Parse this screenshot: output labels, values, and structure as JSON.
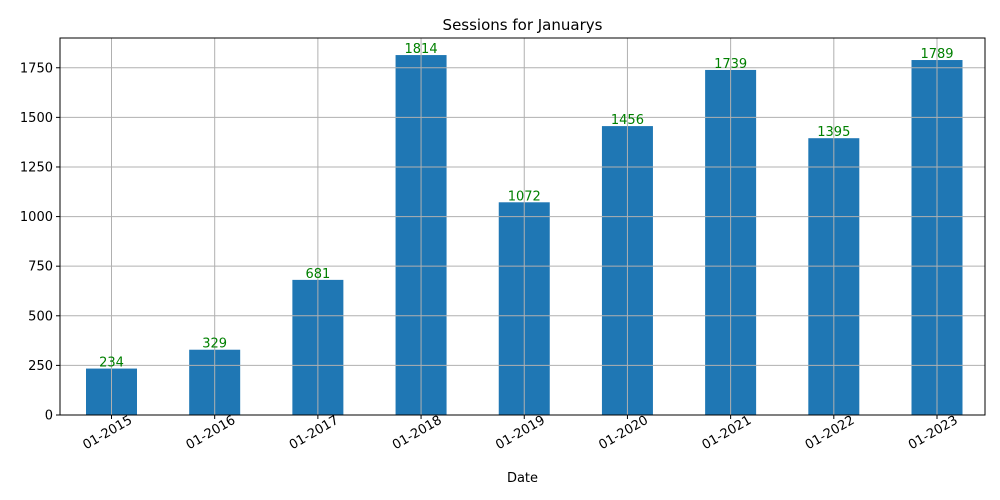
{
  "chart_data": {
    "type": "bar",
    "title": "Sessions for Januarys",
    "xlabel": "Date",
    "ylabel": "",
    "categories": [
      "01-2015",
      "01-2016",
      "01-2017",
      "01-2018",
      "01-2019",
      "01-2020",
      "01-2021",
      "01-2022",
      "01-2023"
    ],
    "values": [
      234,
      329,
      681,
      1814,
      1072,
      1456,
      1739,
      1395,
      1789
    ],
    "ylim": [
      0,
      1900
    ],
    "yticks": [
      0,
      250,
      500,
      750,
      1000,
      1250,
      1500,
      1750
    ],
    "grid": true,
    "legend": "none",
    "bar_color": "#1f77b4",
    "data_label_color": "#008000",
    "x_tick_rotation": "30 degrees"
  }
}
